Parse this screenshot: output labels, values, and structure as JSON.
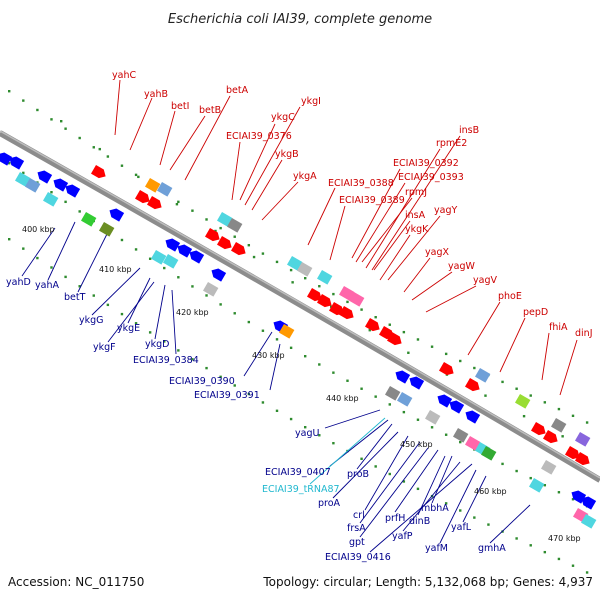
{
  "title": "Escherichia coli IAI39, complete genome",
  "accession": "Accession: NC_011750",
  "stats": "Topology: circular; Length: 5,132,068 bp; Genes: 4,937",
  "colors": {
    "forward_label": "#cc0000",
    "reverse_label": "#00008b",
    "rna_label": "#21b8cf",
    "forward_gene": "#ff0000",
    "reverse_gene": "#0000ff",
    "backbone": "#8c8c8c",
    "tick": "#2e8b2e"
  },
  "scale_labels": [
    "400 kbp",
    "410 kbp",
    "420 kbp",
    "430 kbp",
    "440 kbp",
    "450 kbp",
    "460 kbp",
    "470 kbp"
  ],
  "forward_labels": [
    "yahC",
    "yahB",
    "betI",
    "betB",
    "betA",
    "ykgI",
    "ykgC",
    "ECIAI39_0376",
    "ykgB",
    "ykgA",
    "insB",
    "rpmE2",
    "ECIAI39_0392",
    "ECIAI39_0393",
    "ECIAI39_0388",
    "rpmJ",
    "ECIAI39_0389",
    "yagY",
    "insA",
    "ykgK",
    "yagX",
    "yagW",
    "yagV",
    "phoE",
    "pepD",
    "fhiA",
    "dinJ"
  ],
  "reverse_labels": [
    "yahD",
    "yahA",
    "betT",
    "ykgG",
    "ykgE",
    "ykgF",
    "ykgD",
    "ECIAI39_0384",
    "ECIAI39_0390",
    "ECIAI39_0391",
    "yagU",
    "ECIAI39_0407",
    "proB",
    "proA",
    "crl",
    "frsA",
    "gpt",
    "prfH",
    "dinB",
    "mbhA",
    "yafP",
    "yafL",
    "yafM",
    "ECIAI39_0416",
    "gmhA"
  ],
  "rna_labels": [
    "ECIAI39_tRNA87"
  ]
}
